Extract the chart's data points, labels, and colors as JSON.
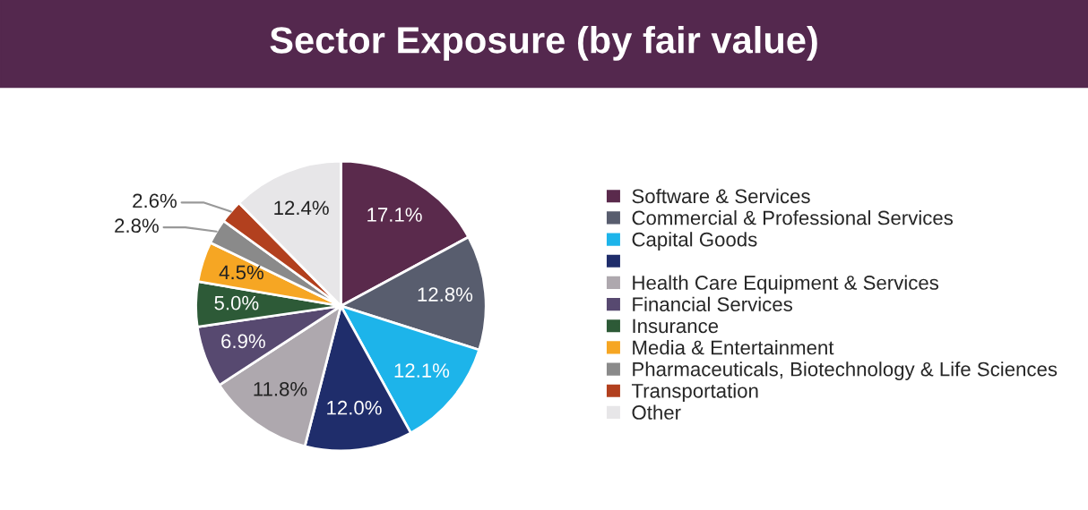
{
  "chart_data": {
    "type": "pie",
    "title": "Sector Exposure (by fair value)",
    "categories": [
      "Software & Services",
      "Commercial & Professional Services",
      "Capital Goods",
      null,
      "Health Care Equipment & Services",
      "Financial Services",
      "Insurance",
      "Media & Entertainment",
      "Pharmaceuticals, Biotechnology & Life Sciences",
      "Transportation",
      "Other"
    ],
    "values": [
      17.1,
      12.8,
      12.1,
      12.0,
      11.8,
      6.9,
      5.0,
      4.5,
      2.8,
      2.6,
      12.4
    ],
    "value_labels": [
      "17.1%",
      "12.8%",
      "12.1%",
      "12.0%",
      "11.8%",
      "6.9%",
      "5.0%",
      "4.5%",
      "2.8%",
      "2.6%",
      "12.4%"
    ],
    "colors": [
      "#5a2a4c",
      "#585d6e",
      "#1db4ea",
      "#1f2d6b",
      "#aea8ae",
      "#574970",
      "#2d5a37",
      "#f6a623",
      "#8a8a8a",
      "#b2401e",
      "#e7e6e8"
    ],
    "legend": "right"
  }
}
